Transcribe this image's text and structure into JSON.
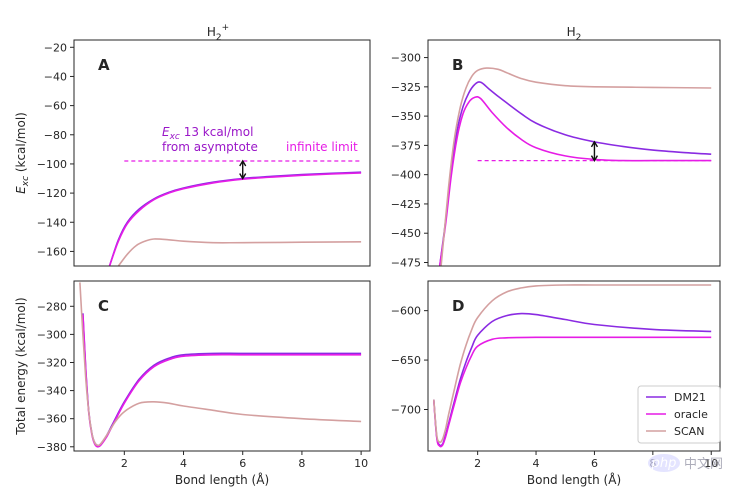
{
  "chart_data": [
    {
      "panel": "A",
      "type": "line",
      "column_title": "H2+",
      "ylabel": "E_xc (kcal/mol)",
      "xlim": [
        0.3,
        10.3
      ],
      "ylim": [
        -170,
        -15
      ],
      "yticks": [
        -160,
        -140,
        -120,
        -100,
        -80,
        -60,
        -40,
        -20
      ],
      "series": [
        {
          "name": "DM21",
          "x": [
            1.5,
            1.8,
            2.1,
            2.5,
            3,
            3.5,
            4,
            5,
            6,
            7,
            8,
            9,
            10
          ],
          "y": [
            -170,
            -152,
            -140,
            -131,
            -124,
            -119.5,
            -116.5,
            -112.5,
            -110,
            -108.5,
            -107.3,
            -106.4,
            -105.7
          ]
        },
        {
          "name": "oracle",
          "x": [
            1.5,
            1.8,
            2.1,
            2.5,
            3,
            3.5,
            4,
            5,
            6,
            7,
            8,
            9,
            10
          ],
          "y": [
            -170,
            -153,
            -141,
            -132,
            -124.5,
            -120,
            -117,
            -113,
            -110.5,
            -109,
            -107.8,
            -106.9,
            -106.2
          ]
        },
        {
          "name": "SCAN",
          "x": [
            1.8,
            2.1,
            2.4,
            2.7,
            3,
            3.5,
            4,
            5,
            6,
            8,
            10
          ],
          "y": [
            -170,
            -162,
            -156,
            -153,
            -151.5,
            -152,
            -153,
            -154,
            -154,
            -153.7,
            -153.4
          ]
        }
      ],
      "asymptote": {
        "y": -98,
        "x_range": [
          2.0,
          10.0
        ]
      },
      "arrow": {
        "x": 6,
        "y_top": -98,
        "y_bottom": -110
      },
      "annotations": [
        {
          "text_main": "E",
          "text_sub": "xc",
          "text_rest": " 13 kcal/mol",
          "line2": "from asymptote",
          "color": "#9a16c8"
        },
        {
          "text": "infinite limit",
          "color": "#e61ce6"
        }
      ],
      "letter": "A"
    },
    {
      "panel": "B",
      "type": "line",
      "column_title": "H2",
      "xlim": [
        0.3,
        10.3
      ],
      "ylim": [
        -478,
        -285
      ],
      "yticks": [
        -475,
        -450,
        -425,
        -400,
        -375,
        -350,
        -325,
        -300
      ],
      "series": [
        {
          "name": "DM21",
          "x": [
            0.7,
            0.9,
            1.1,
            1.3,
            1.5,
            1.7,
            1.9,
            2.1,
            2.4,
            2.8,
            3.5,
            4,
            5,
            6,
            7,
            8,
            9,
            10
          ],
          "y": [
            -478,
            -440,
            -395,
            -362,
            -342,
            -330,
            -323,
            -321,
            -327,
            -335,
            -348,
            -356,
            -366,
            -372,
            -376,
            -379,
            -381,
            -382.5
          ]
        },
        {
          "name": "oracle",
          "x": [
            0.7,
            0.9,
            1.1,
            1.3,
            1.5,
            1.7,
            1.9,
            2.1,
            2.5,
            3,
            3.5,
            4,
            5,
            6,
            7,
            8,
            10
          ],
          "y": [
            -478,
            -443,
            -400,
            -368,
            -348,
            -338,
            -334,
            -335,
            -347,
            -360,
            -370,
            -377,
            -384,
            -387,
            -388,
            -388,
            -388
          ]
        },
        {
          "name": "SCAN",
          "x": [
            0.75,
            1.0,
            1.2,
            1.4,
            1.6,
            1.8,
            2.0,
            2.3,
            2.7,
            3,
            3.5,
            4,
            5,
            6,
            8,
            10
          ],
          "y": [
            -478,
            -412,
            -370,
            -343,
            -326,
            -316,
            -311,
            -309,
            -310,
            -313,
            -318,
            -321,
            -324,
            -325,
            -325.5,
            -326
          ]
        }
      ],
      "asymptote": {
        "y": -388,
        "x_range": [
          2.0,
          10.0
        ]
      },
      "arrow": {
        "x": 6,
        "y_top": -372,
        "y_bottom": -388
      },
      "letter": "B"
    },
    {
      "panel": "C",
      "type": "line",
      "ylabel": "Total energy (kcal/mol)",
      "xlabel": "Bond length (Å)",
      "xlim": [
        0.3,
        10.3
      ],
      "ylim": [
        -383,
        -262
      ],
      "yticks": [
        -380,
        -360,
        -340,
        -320,
        -300,
        -280
      ],
      "xticks": [
        2,
        4,
        6,
        8,
        10
      ],
      "series": [
        {
          "name": "DM21",
          "x": [
            0.6,
            0.7,
            0.8,
            0.9,
            1.0,
            1.1,
            1.2,
            1.4,
            1.6,
            2,
            2.5,
            3,
            3.5,
            4,
            5,
            6,
            8,
            10
          ],
          "y": [
            -285,
            -325,
            -355,
            -370,
            -377,
            -379,
            -378,
            -372,
            -364,
            -348,
            -332,
            -322,
            -317,
            -314.5,
            -313.5,
            -313.5,
            -313.5,
            -313.5
          ]
        },
        {
          "name": "oracle",
          "x": [
            0.6,
            0.7,
            0.8,
            0.9,
            1.0,
            1.1,
            1.2,
            1.4,
            1.6,
            2,
            2.5,
            3,
            3.5,
            4,
            5,
            6,
            8,
            10
          ],
          "y": [
            -286,
            -326,
            -356,
            -371,
            -378,
            -380,
            -379,
            -373,
            -365,
            -349,
            -333,
            -323,
            -318,
            -315.5,
            -314.5,
            -314.5,
            -314.5,
            -314.5
          ]
        },
        {
          "name": "SCAN",
          "x": [
            0.5,
            0.6,
            0.7,
            0.8,
            0.9,
            1.0,
            1.1,
            1.2,
            1.4,
            1.7,
            2,
            2.5,
            3,
            3.5,
            4,
            5,
            6,
            8,
            10
          ],
          "y": [
            -263,
            -300,
            -332,
            -355,
            -370,
            -377,
            -379,
            -378,
            -372,
            -362,
            -355,
            -349,
            -348,
            -349,
            -351,
            -354,
            -357,
            -360,
            -362
          ]
        }
      ],
      "letter": "C"
    },
    {
      "panel": "D",
      "type": "line",
      "xlabel": "Bond length (Å)",
      "xlim": [
        0.3,
        10.3
      ],
      "ylim": [
        -742,
        -570
      ],
      "yticks": [
        -700,
        -650,
        -600
      ],
      "xticks": [
        2,
        4,
        6,
        8,
        10
      ],
      "series": [
        {
          "name": "DM21",
          "x": [
            0.5,
            0.6,
            0.7,
            0.8,
            0.9,
            1.0,
            1.2,
            1.4,
            1.6,
            1.8,
            2,
            2.5,
            3,
            3.5,
            4,
            5,
            6,
            8,
            10
          ],
          "y": [
            -690,
            -728,
            -736,
            -735,
            -726,
            -715,
            -692,
            -670,
            -652,
            -637,
            -625,
            -611,
            -605,
            -603,
            -604,
            -609,
            -614,
            -619,
            -621
          ]
        },
        {
          "name": "oracle",
          "x": [
            0.5,
            0.6,
            0.7,
            0.8,
            0.9,
            1.0,
            1.2,
            1.4,
            1.6,
            1.8,
            2,
            2.5,
            3,
            4,
            6,
            8,
            10
          ],
          "y": [
            -691,
            -729,
            -737,
            -736,
            -728,
            -717,
            -695,
            -674,
            -658,
            -645,
            -636,
            -629,
            -627.5,
            -627,
            -627,
            -627,
            -627
          ]
        },
        {
          "name": "SCAN",
          "x": [
            0.5,
            0.6,
            0.7,
            0.8,
            0.9,
            1.0,
            1.2,
            1.4,
            1.6,
            1.8,
            2,
            2.5,
            3,
            3.5,
            4,
            5,
            6,
            8,
            10
          ],
          "y": [
            -690,
            -726,
            -733,
            -730,
            -720,
            -706,
            -680,
            -655,
            -635,
            -619,
            -607,
            -590,
            -581,
            -577,
            -575,
            -574,
            -574,
            -574,
            -574
          ]
        }
      ],
      "letter": "D",
      "legend": {
        "position": "bottom-right",
        "entries": [
          "DM21",
          "oracle",
          "SCAN"
        ]
      }
    }
  ],
  "titles": {
    "left_base": "H",
    "left_sub": "2",
    "left_sup": "+",
    "right_base": "H",
    "right_sub": "2"
  },
  "colors": {
    "DM21": "#8a2be2",
    "oracle": "#e61ce6",
    "SCAN": "#d4a0a0",
    "asymptote": "#e61ce6",
    "arrow": "#111111"
  },
  "watermark": {
    "logo": "php",
    "text": "中文网"
  }
}
